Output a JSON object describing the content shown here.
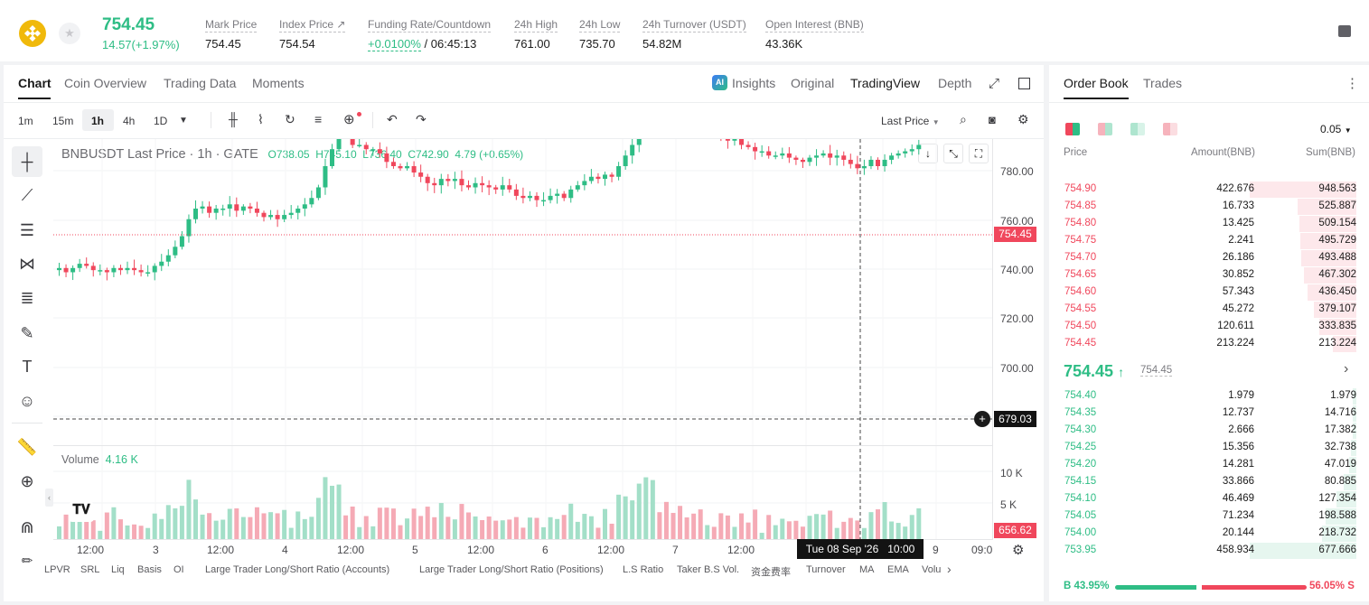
{
  "header": {
    "price": "754.45",
    "change": "14.57(+1.97%)",
    "stats": [
      {
        "label": "Mark Price",
        "value": "754.45"
      },
      {
        "label": "Index Price ↗",
        "value": "754.54"
      },
      {
        "label": "Funding Rate/Countdown",
        "value_green": "+0.0100%",
        "value": " / 06:45:13"
      },
      {
        "label": "24h High",
        "value": "761.00"
      },
      {
        "label": "24h Low",
        "value": "735.70"
      },
      {
        "label": "24h Turnover (USDT)",
        "value": "54.82M"
      },
      {
        "label": "Open Interest (BNB)",
        "value": "43.36K"
      }
    ]
  },
  "chart_tabs": [
    "Chart",
    "Coin Overview",
    "Trading Data",
    "Moments"
  ],
  "view_tabs": [
    "Insights",
    "Original",
    "TradingView",
    "Depth"
  ],
  "intervals": [
    "1m",
    "15m",
    "1h",
    "4h",
    "1D"
  ],
  "toolbar": {
    "last_price": "Last Price"
  },
  "legend": {
    "symbol": "BNBUSDT Last Price · 1h · GATE",
    "o": "738.05",
    "h": "745.10",
    "l": "736.40",
    "c": "742.90",
    "chg": "4.79 (+0.65%)"
  },
  "y_axis": [
    "780.00",
    "760.00",
    "740.00",
    "720.00",
    "700.00"
  ],
  "price_tag": "754.45",
  "crosshair_tag": "679.03",
  "volume": {
    "label": "Volume",
    "value": "4.16 K",
    "axis": [
      "10 K",
      "5 K"
    ],
    "tag": "656.62"
  },
  "x_axis": [
    "12:00",
    "3",
    "12:00",
    "4",
    "12:00",
    "5",
    "12:00",
    "6",
    "12:00",
    "7",
    "12:00",
    "9",
    "09:0"
  ],
  "time_tag": "Tue 08 Sep '26   10:00",
  "bottom_indicators": [
    "LPVR",
    "SRL",
    "Liq",
    "Basis",
    "OI",
    "Large Trader Long/Short Ratio (Accounts)",
    "Large Trader Long/Short Ratio (Positions)",
    "L.S Ratio",
    "Taker B.S Vol.",
    "资金费率",
    "Turnover",
    "MA",
    "EMA",
    "Volu"
  ],
  "orderbook": {
    "tabs": [
      "Order Book",
      "Trades"
    ],
    "precision": "0.05",
    "cols": [
      "Price",
      "Amount(BNB)",
      "Sum(BNB)"
    ],
    "asks": [
      [
        "754.90",
        "422.676",
        "948.563"
      ],
      [
        "754.85",
        "16.733",
        "525.887"
      ],
      [
        "754.80",
        "13.425",
        "509.154"
      ],
      [
        "754.75",
        "2.241",
        "495.729"
      ],
      [
        "754.70",
        "26.186",
        "493.488"
      ],
      [
        "754.65",
        "30.852",
        "467.302"
      ],
      [
        "754.60",
        "57.343",
        "436.450"
      ],
      [
        "754.55",
        "45.272",
        "379.107"
      ],
      [
        "754.50",
        "120.611",
        "333.835"
      ],
      [
        "754.45",
        "213.224",
        "213.224"
      ]
    ],
    "mid": "754.45",
    "mid_sub": "754.45",
    "bids": [
      [
        "754.40",
        "1.979",
        "1.979"
      ],
      [
        "754.35",
        "12.737",
        "14.716"
      ],
      [
        "754.30",
        "2.666",
        "17.382"
      ],
      [
        "754.25",
        "15.356",
        "32.738"
      ],
      [
        "754.20",
        "14.281",
        "47.019"
      ],
      [
        "754.15",
        "33.866",
        "80.885"
      ],
      [
        "754.10",
        "46.469",
        "127.354"
      ],
      [
        "754.05",
        "71.234",
        "198.588"
      ],
      [
        "754.00",
        "20.144",
        "218.732"
      ],
      [
        "753.95",
        "458.934",
        "677.666"
      ]
    ],
    "buy_pct": "B 43.95%",
    "sell_pct": "56.05% S",
    "buy_ratio": 43.95
  },
  "chart_data": {
    "type": "candlestick",
    "ylim": [
      670,
      790
    ],
    "closes": [
      742,
      740,
      742,
      744,
      743,
      741,
      741,
      740,
      742,
      741,
      742,
      741,
      740,
      740,
      743,
      745,
      748,
      752,
      757,
      765,
      770,
      771,
      768,
      770,
      770,
      772,
      769,
      771,
      770,
      768,
      766,
      767,
      765,
      767,
      768,
      770,
      772,
      775,
      780,
      790,
      798,
      806,
      805,
      800,
      800,
      798,
      798,
      796,
      792,
      790,
      789,
      790,
      787,
      785,
      782,
      781,
      784,
      783,
      784,
      781,
      780,
      782,
      781,
      780,
      779,
      781,
      779,
      776,
      775,
      776,
      774,
      774,
      776,
      777,
      775,
      779,
      781,
      783,
      785,
      784,
      786,
      785,
      790,
      795,
      800,
      808,
      818,
      825,
      822,
      818,
      815,
      812,
      810,
      808,
      806,
      806,
      805,
      804,
      802,
      803,
      800,
      799,
      797,
      797,
      795,
      795,
      796,
      794,
      793,
      792,
      794,
      795,
      796,
      794,
      795,
      793,
      791,
      789,
      790,
      793,
      790,
      793,
      795,
      796,
      797,
      798,
      800
    ]
  }
}
